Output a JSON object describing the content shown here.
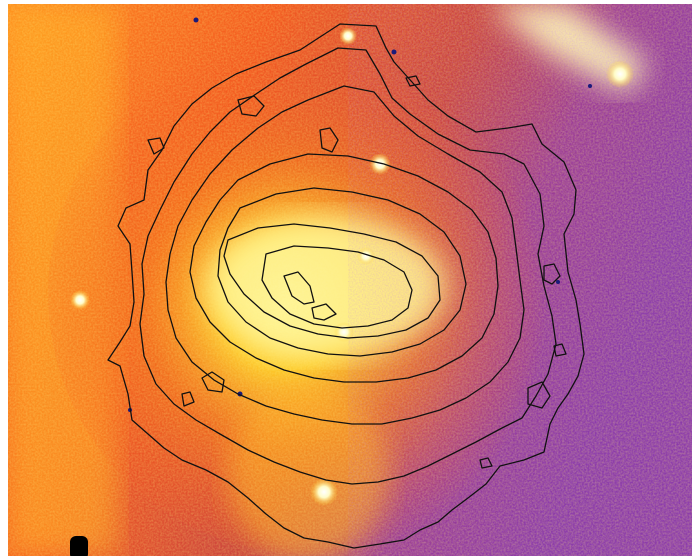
{
  "image": {
    "kind": "false-color astronomical image with black intensity contours",
    "palette": {
      "background": "#ffffff",
      "high": "#fffbb0",
      "mid_high": "#ffd028",
      "mid": "#f46a1a",
      "low": "#e03a2c",
      "lowest": "#8a3aa8",
      "contour": "#111111",
      "point_source_dark": "#1a1a7a"
    },
    "contour_levels": 9
  }
}
